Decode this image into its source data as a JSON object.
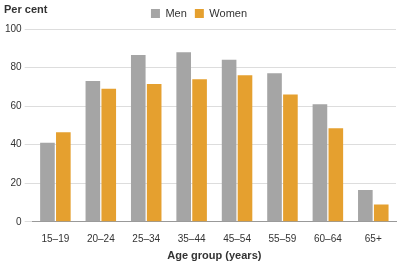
{
  "chart_data": {
    "type": "bar",
    "ylabel": "Per cent",
    "xlabel": "Age group (years)",
    "categories": [
      "15–19",
      "20–24",
      "25–34",
      "35–44",
      "45–54",
      "55–59",
      "60–64",
      "65+"
    ],
    "series": [
      {
        "name": "Men",
        "color": "#a5a5a5",
        "values": [
          41,
          73,
          86.5,
          88,
          84,
          77,
          61,
          16.5
        ]
      },
      {
        "name": "Women",
        "color": "#e5a02f",
        "values": [
          46.5,
          69,
          71.5,
          74,
          76,
          66,
          48.5,
          9
        ]
      }
    ],
    "ylim": [
      0,
      100
    ],
    "yticks": [
      0,
      20,
      40,
      60,
      80,
      100
    ],
    "grid": true,
    "legend": "top"
  }
}
